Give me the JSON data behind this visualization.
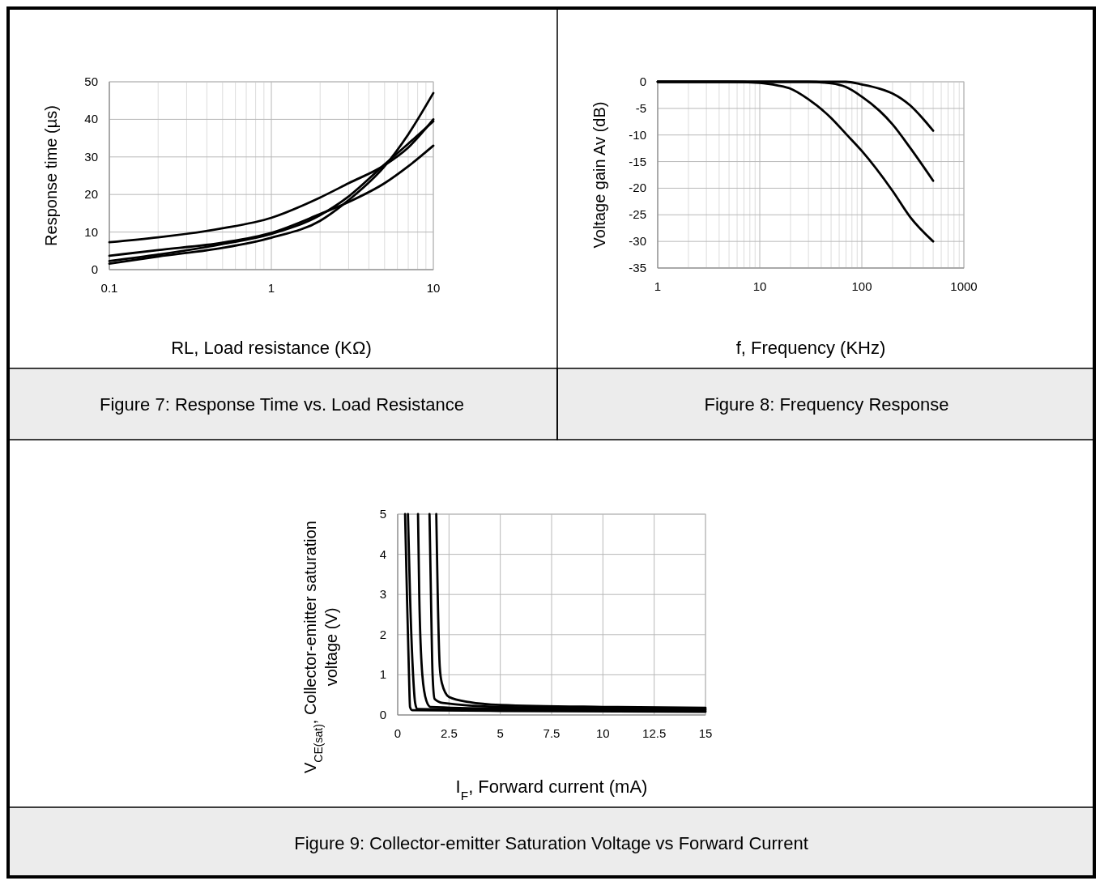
{
  "chart_data": [
    {
      "type": "line",
      "title": "Figure 7: Response Time vs. Load Resistance",
      "xlabel": "RL, Load resistance (KΩ)",
      "ylabel": "Response time (µs)",
      "log": "x",
      "xlim": [
        0.1,
        10
      ],
      "xticks": [
        0.1,
        1,
        10
      ],
      "ylim": [
        0,
        50
      ],
      "yticks": [
        0,
        10,
        20,
        30,
        40,
        50
      ],
      "grid": true,
      "series": [
        {
          "color": "#000000",
          "x": [
            0.1,
            0.2,
            0.5,
            1,
            2,
            3,
            5,
            7,
            10
          ],
          "values": [
            7.3,
            8.6,
            11,
            13.8,
            19.2,
            23,
            27.8,
            32.5,
            40
          ]
        },
        {
          "color": "#000000",
          "x": [
            0.1,
            0.2,
            0.5,
            1,
            2,
            3,
            5,
            7,
            10
          ],
          "values": [
            3.7,
            5.2,
            7.2,
            9.8,
            14.8,
            18,
            23,
            27.5,
            33
          ]
        },
        {
          "color": "#000000",
          "x": [
            0.1,
            0.2,
            0.5,
            1,
            2,
            3,
            5,
            7,
            10
          ],
          "values": [
            2.3,
            4,
            6.8,
            9.5,
            14.5,
            19.5,
            28,
            33.5,
            39.5
          ]
        },
        {
          "color": "#000000",
          "x": [
            0.1,
            0.2,
            0.5,
            1,
            2,
            3,
            5,
            7,
            10
          ],
          "values": [
            1.6,
            3.5,
            5.8,
            8.5,
            13,
            18.5,
            27.5,
            36,
            47
          ]
        }
      ]
    },
    {
      "type": "line",
      "title": "Figure 8: Frequency Response",
      "xlabel": "f, Frequency (KHz)",
      "ylabel": "Voltage gain Av (dB)",
      "log": "x",
      "xlim": [
        1,
        1000
      ],
      "xticks": [
        1,
        10,
        100,
        1000
      ],
      "ylim": [
        -35,
        0
      ],
      "yticks": [
        0,
        -5,
        -10,
        -15,
        -20,
        -25,
        -30,
        -35
      ],
      "grid": true,
      "series": [
        {
          "color": "#000000",
          "x": [
            1,
            5,
            10,
            15,
            20,
            30,
            50,
            70,
            100,
            200,
            300,
            500
          ],
          "values": [
            0,
            0,
            -0.2,
            -0.7,
            -1.3,
            -3.3,
            -6.8,
            -9.8,
            -13,
            -20.5,
            -25.5,
            -30
          ]
        },
        {
          "color": "#000000",
          "x": [
            1,
            10,
            30,
            50,
            70,
            100,
            150,
            200,
            300,
            500
          ],
          "values": [
            0,
            0,
            0,
            -0.3,
            -1,
            -2.8,
            -5.5,
            -8,
            -12.5,
            -18.6
          ]
        },
        {
          "color": "#000000",
          "x": [
            1,
            10,
            70,
            100,
            150,
            200,
            300,
            400,
            500
          ],
          "values": [
            0,
            0,
            0,
            -0.5,
            -1.3,
            -2.2,
            -4.5,
            -7,
            -9.2
          ]
        }
      ]
    },
    {
      "type": "line",
      "title": "Figure 9: Collector-emitter Saturation Voltage vs Forward Current",
      "xlabel": "I$_{F}$, Forward current (mA)",
      "ylabel": "V$_{CE(sat)}$, Collector-emitter saturation voltage (V)",
      "xlim": [
        0,
        15
      ],
      "xticks": [
        0,
        2.5,
        5,
        7.5,
        10,
        12.5,
        15
      ],
      "ylim": [
        0,
        5
      ],
      "yticks": [
        0,
        1,
        2,
        3,
        4,
        5
      ],
      "grid": true,
      "series": [
        {
          "color": "#000000",
          "x": [
            0.36,
            0.45,
            0.55,
            0.6,
            0.7,
            5,
            15
          ],
          "values": [
            5,
            3,
            1,
            0.2,
            0.12,
            0.1,
            0.08
          ]
        },
        {
          "color": "#000000",
          "x": [
            0.5,
            0.6,
            0.75,
            0.85,
            0.95,
            5,
            15
          ],
          "values": [
            5,
            3,
            1,
            0.3,
            0.15,
            0.13,
            0.1
          ]
        },
        {
          "color": "#000000",
          "x": [
            0.99,
            1.05,
            1.2,
            1.4,
            1.6,
            5,
            15
          ],
          "values": [
            5,
            3,
            1,
            0.35,
            0.2,
            0.16,
            0.13
          ]
        },
        {
          "color": "#000000",
          "x": [
            1.55,
            1.62,
            1.7,
            1.8,
            2.2,
            5,
            15
          ],
          "values": [
            5,
            3,
            1,
            0.4,
            0.3,
            0.2,
            0.15
          ]
        },
        {
          "color": "#000000",
          "x": [
            1.88,
            1.95,
            2.05,
            2.15,
            2.5,
            3.5,
            5,
            10,
            15
          ],
          "values": [
            5,
            3,
            1.2,
            0.8,
            0.45,
            0.32,
            0.25,
            0.2,
            0.18
          ]
        }
      ]
    }
  ]
}
